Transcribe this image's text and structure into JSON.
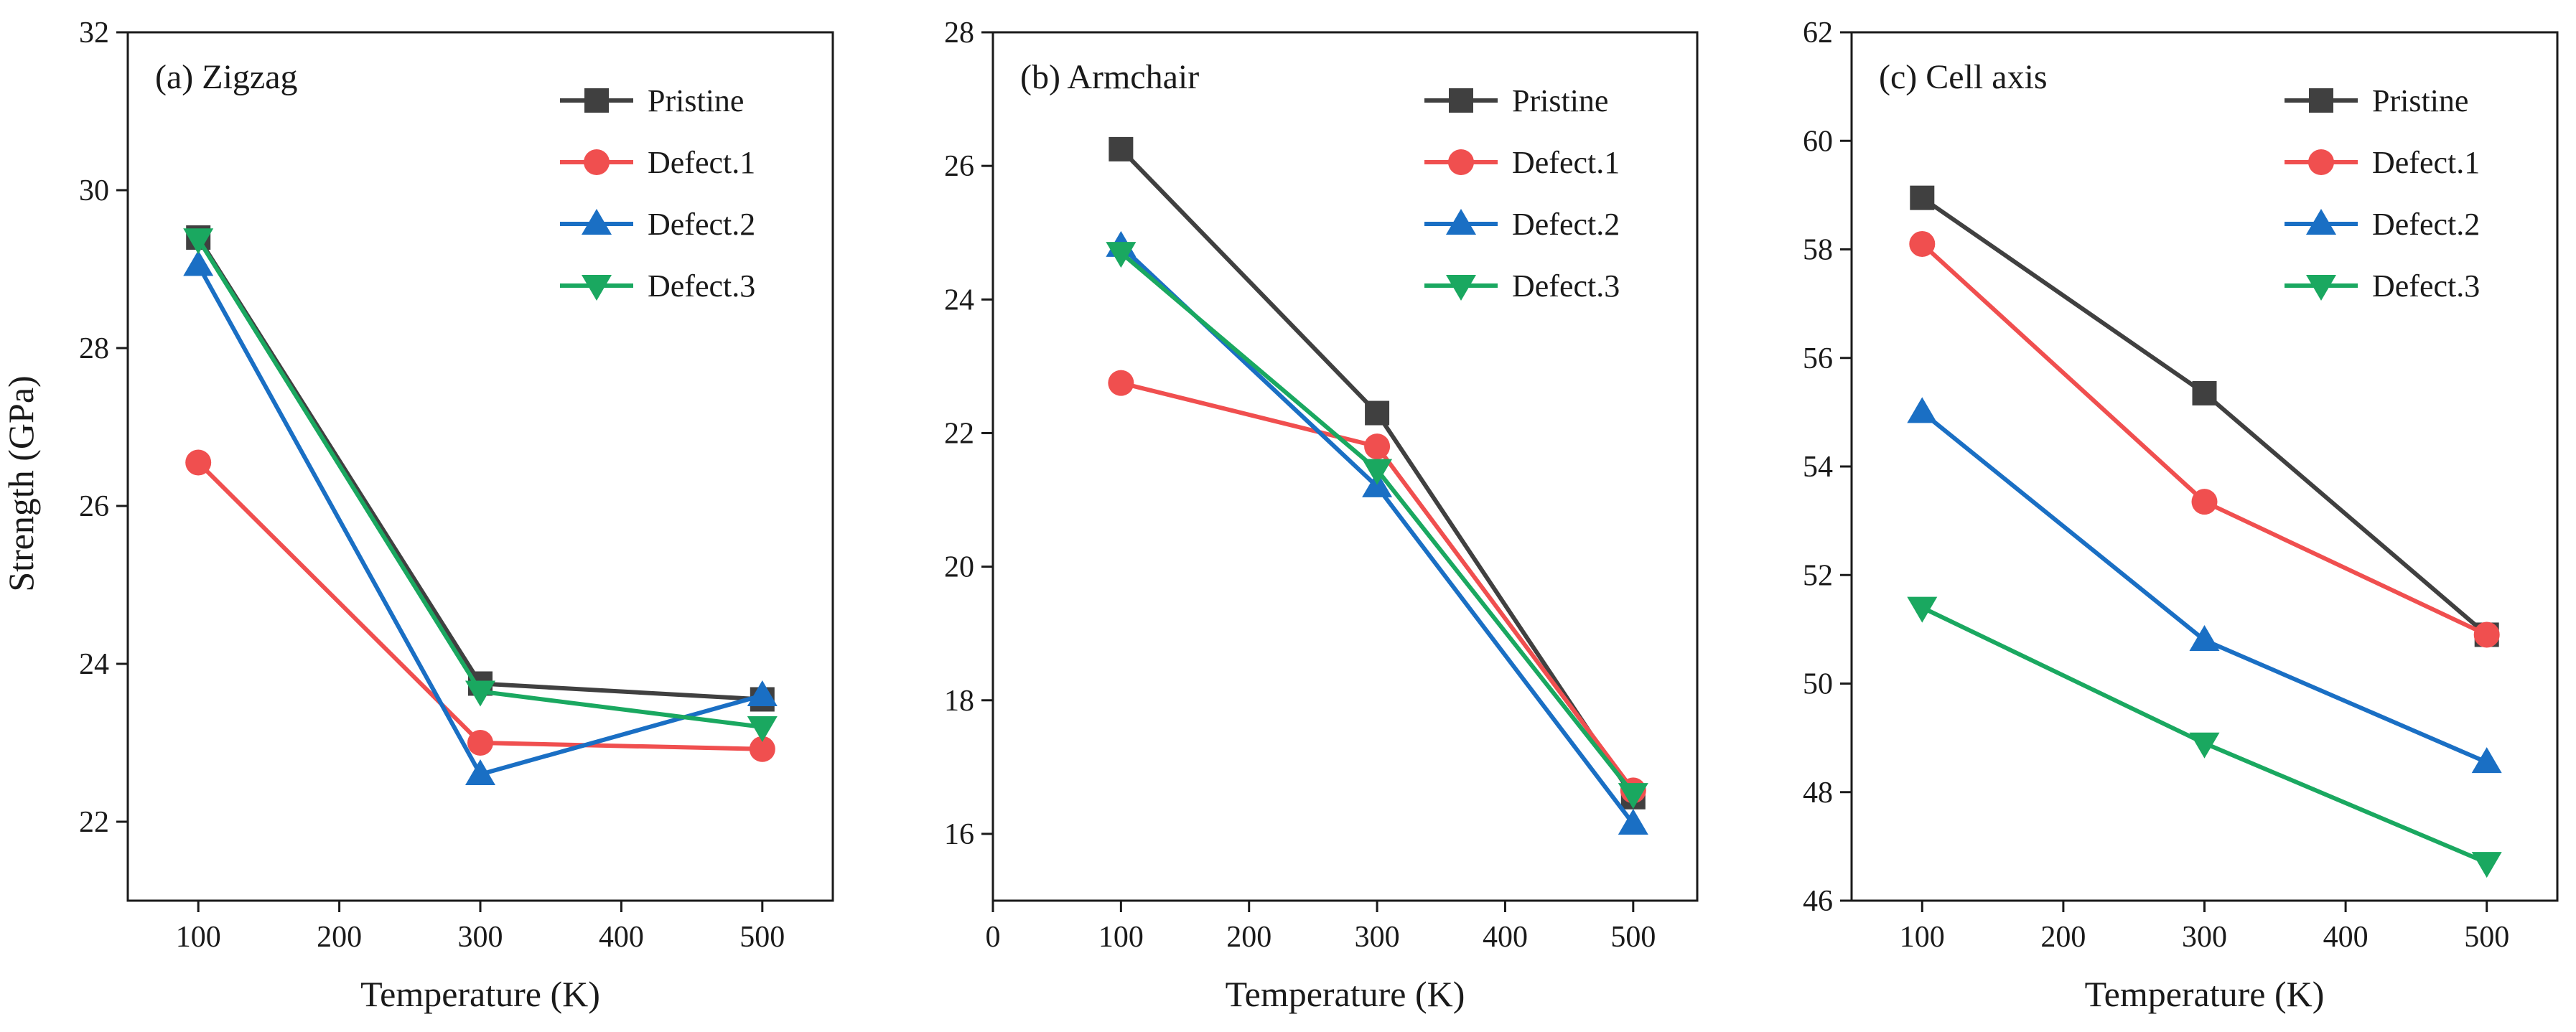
{
  "figure": {
    "ylabel": "Strength (GPa)"
  },
  "chart_data": [
    {
      "type": "line",
      "title": "(a)  Zigzag",
      "xlabel": "Temperature (K)",
      "ylabel": "Strength (GPa)",
      "xlim": [
        50,
        550
      ],
      "ylim": [
        21,
        32
      ],
      "xticks": [
        100,
        200,
        300,
        400,
        500
      ],
      "yticks": [
        22,
        24,
        26,
        28,
        30,
        32
      ],
      "x": [
        100,
        300,
        500
      ],
      "legend_position": "top-right",
      "series": [
        {
          "name": "Pristine",
          "color": "#404040",
          "marker": "square",
          "values": [
            29.4,
            23.75,
            23.55
          ]
        },
        {
          "name": "Defect.1",
          "color": "#f04f4f",
          "marker": "circle",
          "values": [
            26.55,
            23.0,
            22.92
          ]
        },
        {
          "name": "Defect.2",
          "color": "#1a6fc4",
          "marker": "triangle-up",
          "values": [
            29.05,
            22.6,
            23.6
          ]
        },
        {
          "name": "Defect.3",
          "color": "#1aa860",
          "marker": "triangle-down",
          "values": [
            29.38,
            23.65,
            23.2
          ]
        }
      ]
    },
    {
      "type": "line",
      "title": "(b)  Armchair",
      "xlabel": "Temperature (K)",
      "ylabel": "",
      "xlim": [
        0,
        550
      ],
      "ylim": [
        15,
        28
      ],
      "xticks": [
        0,
        100,
        200,
        300,
        400,
        500
      ],
      "yticks": [
        16,
        18,
        20,
        22,
        24,
        26,
        28
      ],
      "x": [
        100,
        300,
        500
      ],
      "legend_position": "top-right",
      "series": [
        {
          "name": "Pristine",
          "color": "#404040",
          "marker": "square",
          "values": [
            26.25,
            22.3,
            16.55
          ]
        },
        {
          "name": "Defect.1",
          "color": "#f04f4f",
          "marker": "circle",
          "values": [
            22.75,
            21.8,
            16.65
          ]
        },
        {
          "name": "Defect.2",
          "color": "#1a6fc4",
          "marker": "triangle-up",
          "values": [
            24.8,
            21.2,
            16.15
          ]
        },
        {
          "name": "Defect.3",
          "color": "#1aa860",
          "marker": "triangle-down",
          "values": [
            24.7,
            21.45,
            16.6
          ]
        }
      ]
    },
    {
      "type": "line",
      "title": "(c)  Cell axis",
      "xlabel": "Temperature (K)",
      "ylabel": "",
      "xlim": [
        50,
        550
      ],
      "ylim": [
        46,
        62
      ],
      "xticks": [
        100,
        200,
        300,
        400,
        500
      ],
      "yticks": [
        46,
        48,
        50,
        52,
        54,
        56,
        58,
        60,
        62
      ],
      "x": [
        100,
        300,
        500
      ],
      "legend_position": "top-right",
      "series": [
        {
          "name": "Pristine",
          "color": "#404040",
          "marker": "square",
          "values": [
            58.95,
            55.35,
            50.9
          ]
        },
        {
          "name": "Defect.1",
          "color": "#f04f4f",
          "marker": "circle",
          "values": [
            58.1,
            53.35,
            50.9
          ]
        },
        {
          "name": "Defect.2",
          "color": "#1a6fc4",
          "marker": "triangle-up",
          "values": [
            55.0,
            50.8,
            48.55
          ]
        },
        {
          "name": "Defect.3",
          "color": "#1aa860",
          "marker": "triangle-down",
          "values": [
            51.4,
            48.9,
            46.7
          ]
        }
      ]
    }
  ]
}
